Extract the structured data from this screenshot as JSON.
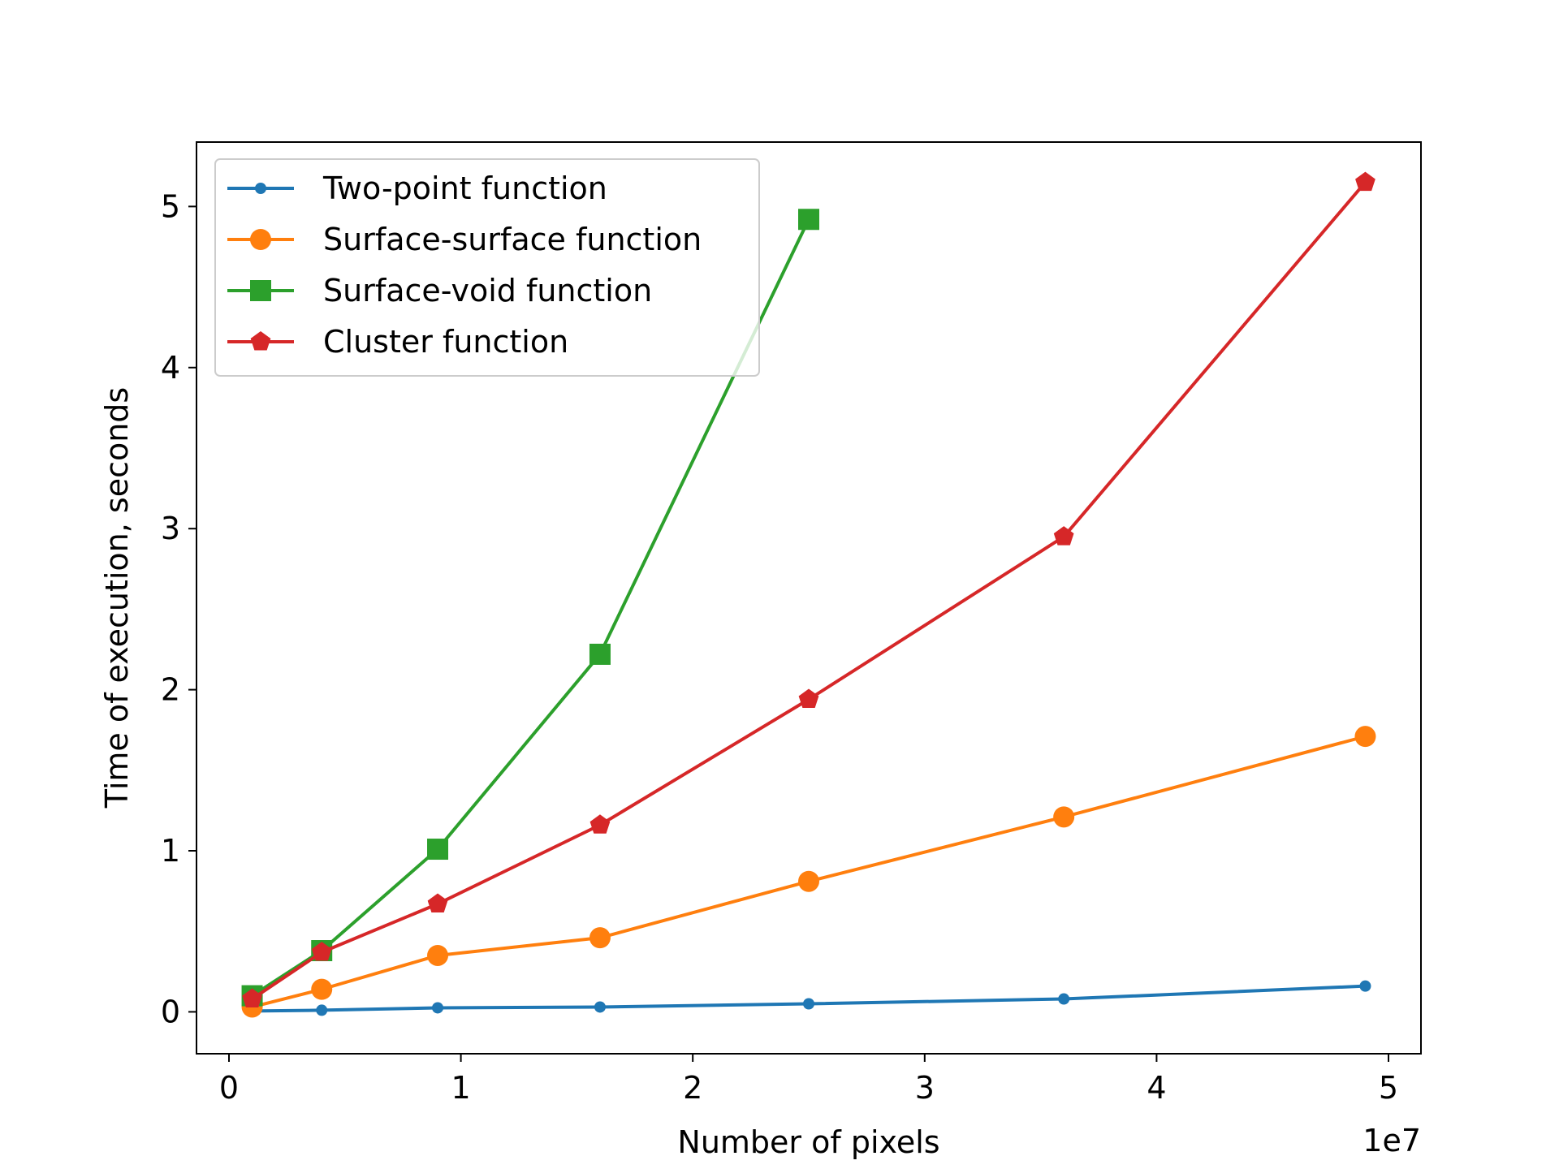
{
  "chart_data": {
    "type": "line",
    "title": "",
    "xlabel": "Number of pixels",
    "ylabel": "Time of execution, seconds",
    "x_offset_label": "1e7",
    "xlim": [
      -1400000.0,
      51400000.0
    ],
    "ylim": [
      -0.26,
      5.4
    ],
    "xticks": [
      0,
      10000000,
      20000000,
      30000000,
      40000000,
      50000000
    ],
    "xtick_labels": [
      "0",
      "1",
      "2",
      "3",
      "4",
      "5"
    ],
    "yticks": [
      0,
      1,
      2,
      3,
      4,
      5
    ],
    "ytick_labels": [
      "0",
      "1",
      "2",
      "3",
      "4",
      "5"
    ],
    "grid": false,
    "legend_position": "upper-left",
    "series": [
      {
        "name": "Two-point function",
        "color": "#1f77b4",
        "marker": "point",
        "x": [
          1000000,
          4000000,
          9000000,
          16000000,
          25000000,
          36000000,
          49000000
        ],
        "y": [
          0.005,
          0.01,
          0.025,
          0.03,
          0.05,
          0.08,
          0.16
        ]
      },
      {
        "name": "Surface-surface function",
        "color": "#ff7f0e",
        "marker": "circle",
        "x": [
          1000000,
          4000000,
          9000000,
          16000000,
          25000000,
          36000000,
          49000000
        ],
        "y": [
          0.03,
          0.14,
          0.35,
          0.46,
          0.81,
          1.21,
          1.71
        ]
      },
      {
        "name": "Surface-void function",
        "color": "#2ca02c",
        "marker": "square",
        "x": [
          1000000,
          4000000,
          9000000,
          16000000,
          25000000
        ],
        "y": [
          0.1,
          0.38,
          1.01,
          2.22,
          4.92
        ]
      },
      {
        "name": "Cluster function",
        "color": "#d62728",
        "marker": "pentagon",
        "x": [
          1000000,
          4000000,
          9000000,
          16000000,
          25000000,
          36000000,
          49000000
        ],
        "y": [
          0.08,
          0.37,
          0.67,
          1.16,
          1.94,
          2.95,
          5.15
        ]
      }
    ]
  }
}
